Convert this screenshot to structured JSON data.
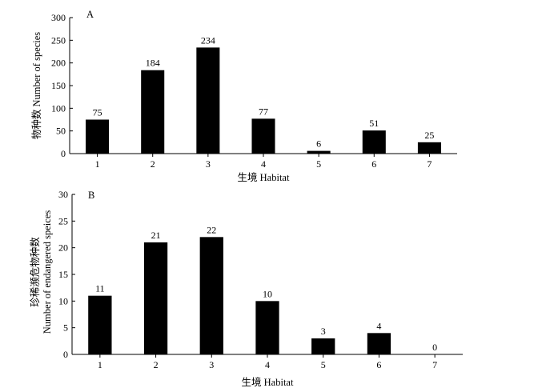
{
  "chart_data": [
    {
      "type": "bar",
      "panel_label": "A",
      "categories": [
        "1",
        "2",
        "3",
        "4",
        "5",
        "6",
        "7"
      ],
      "values": [
        75,
        184,
        234,
        77,
        6,
        51,
        25
      ],
      "xlabel": "生境 Habitat",
      "ylabel": "物种数 Number of species",
      "ylim": [
        0,
        300
      ],
      "yticks": [
        0,
        50,
        100,
        150,
        200,
        250,
        300
      ],
      "grid": false,
      "legend": "none"
    },
    {
      "type": "bar",
      "panel_label": "B",
      "categories": [
        "1",
        "2",
        "3",
        "4",
        "5",
        "6",
        "7"
      ],
      "values": [
        11,
        21,
        22,
        10,
        3,
        4,
        0
      ],
      "xlabel": "生境 Habitat",
      "ylabel": [
        "珍稀濒危物种数",
        "Number of endangered speices"
      ],
      "ylim": [
        0,
        30
      ],
      "yticks": [
        0,
        5,
        10,
        15,
        20,
        25,
        30
      ],
      "grid": false,
      "legend": "none"
    }
  ]
}
